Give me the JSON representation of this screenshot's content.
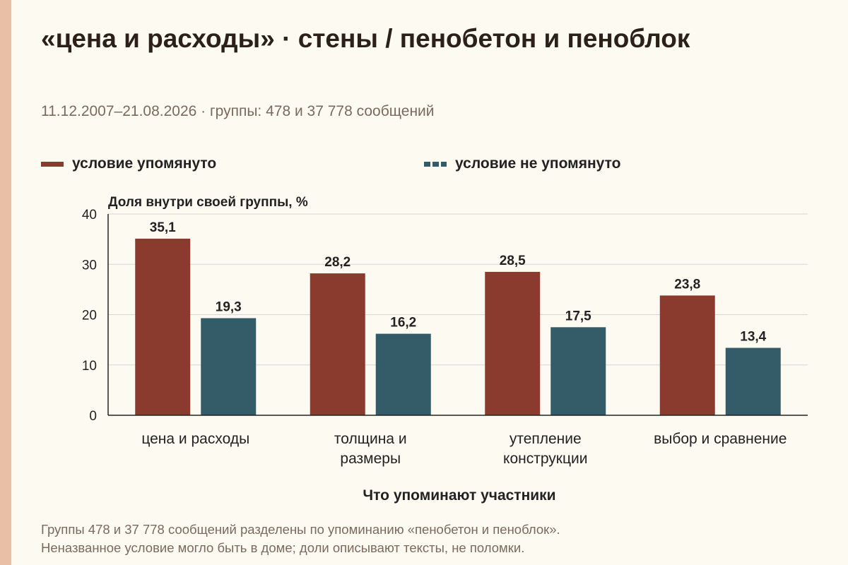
{
  "header": {
    "title": "«цена и расходы» · стены / пенобетон и пеноблок",
    "subtitle": "11.12.2007–21.08.2026 · группы: 478 и 37 778 сообщений"
  },
  "legend": [
    {
      "label": "условие упомянуто",
      "color": "#8a3b2e",
      "style": "solid"
    },
    {
      "label": "условие не упомянуто",
      "color": "#335b68",
      "style": "dashed"
    }
  ],
  "footnote": {
    "line1": "Группы 478 и 37 778 сообщений разделены по упоминанию «пенобетон и пеноблок».",
    "line2": "Неназванное условие могло быть в доме; доли описывают тексты, не поломки."
  },
  "colors": {
    "accent_strip": "#e9bfa6",
    "mentioned": "#8a3b2e",
    "not_mentioned": "#335b68",
    "grid": "#d9d6cf",
    "axis": "#222222"
  },
  "chart_data": {
    "type": "bar",
    "ylabel": "Доля внутри своей группы, %",
    "xlabel": "Что упоминают участники",
    "ylim": [
      0,
      40
    ],
    "yticks": [
      0,
      10,
      20,
      30,
      40
    ],
    "grid": true,
    "legend_position": "top",
    "categories": [
      [
        "цена и расходы"
      ],
      [
        "толщина и",
        "размеры"
      ],
      [
        "утепление",
        "конструкции"
      ],
      [
        "выбор и сравнение"
      ]
    ],
    "series": [
      {
        "name": "условие упомянуто",
        "values": [
          35.1,
          28.2,
          28.5,
          23.8
        ],
        "labels": [
          "35,1",
          "28,2",
          "28,5",
          "23,8"
        ]
      },
      {
        "name": "условие не упомянуто",
        "values": [
          19.3,
          16.2,
          17.5,
          13.4
        ],
        "labels": [
          "19,3",
          "16,2",
          "17,5",
          "13,4"
        ]
      }
    ]
  }
}
